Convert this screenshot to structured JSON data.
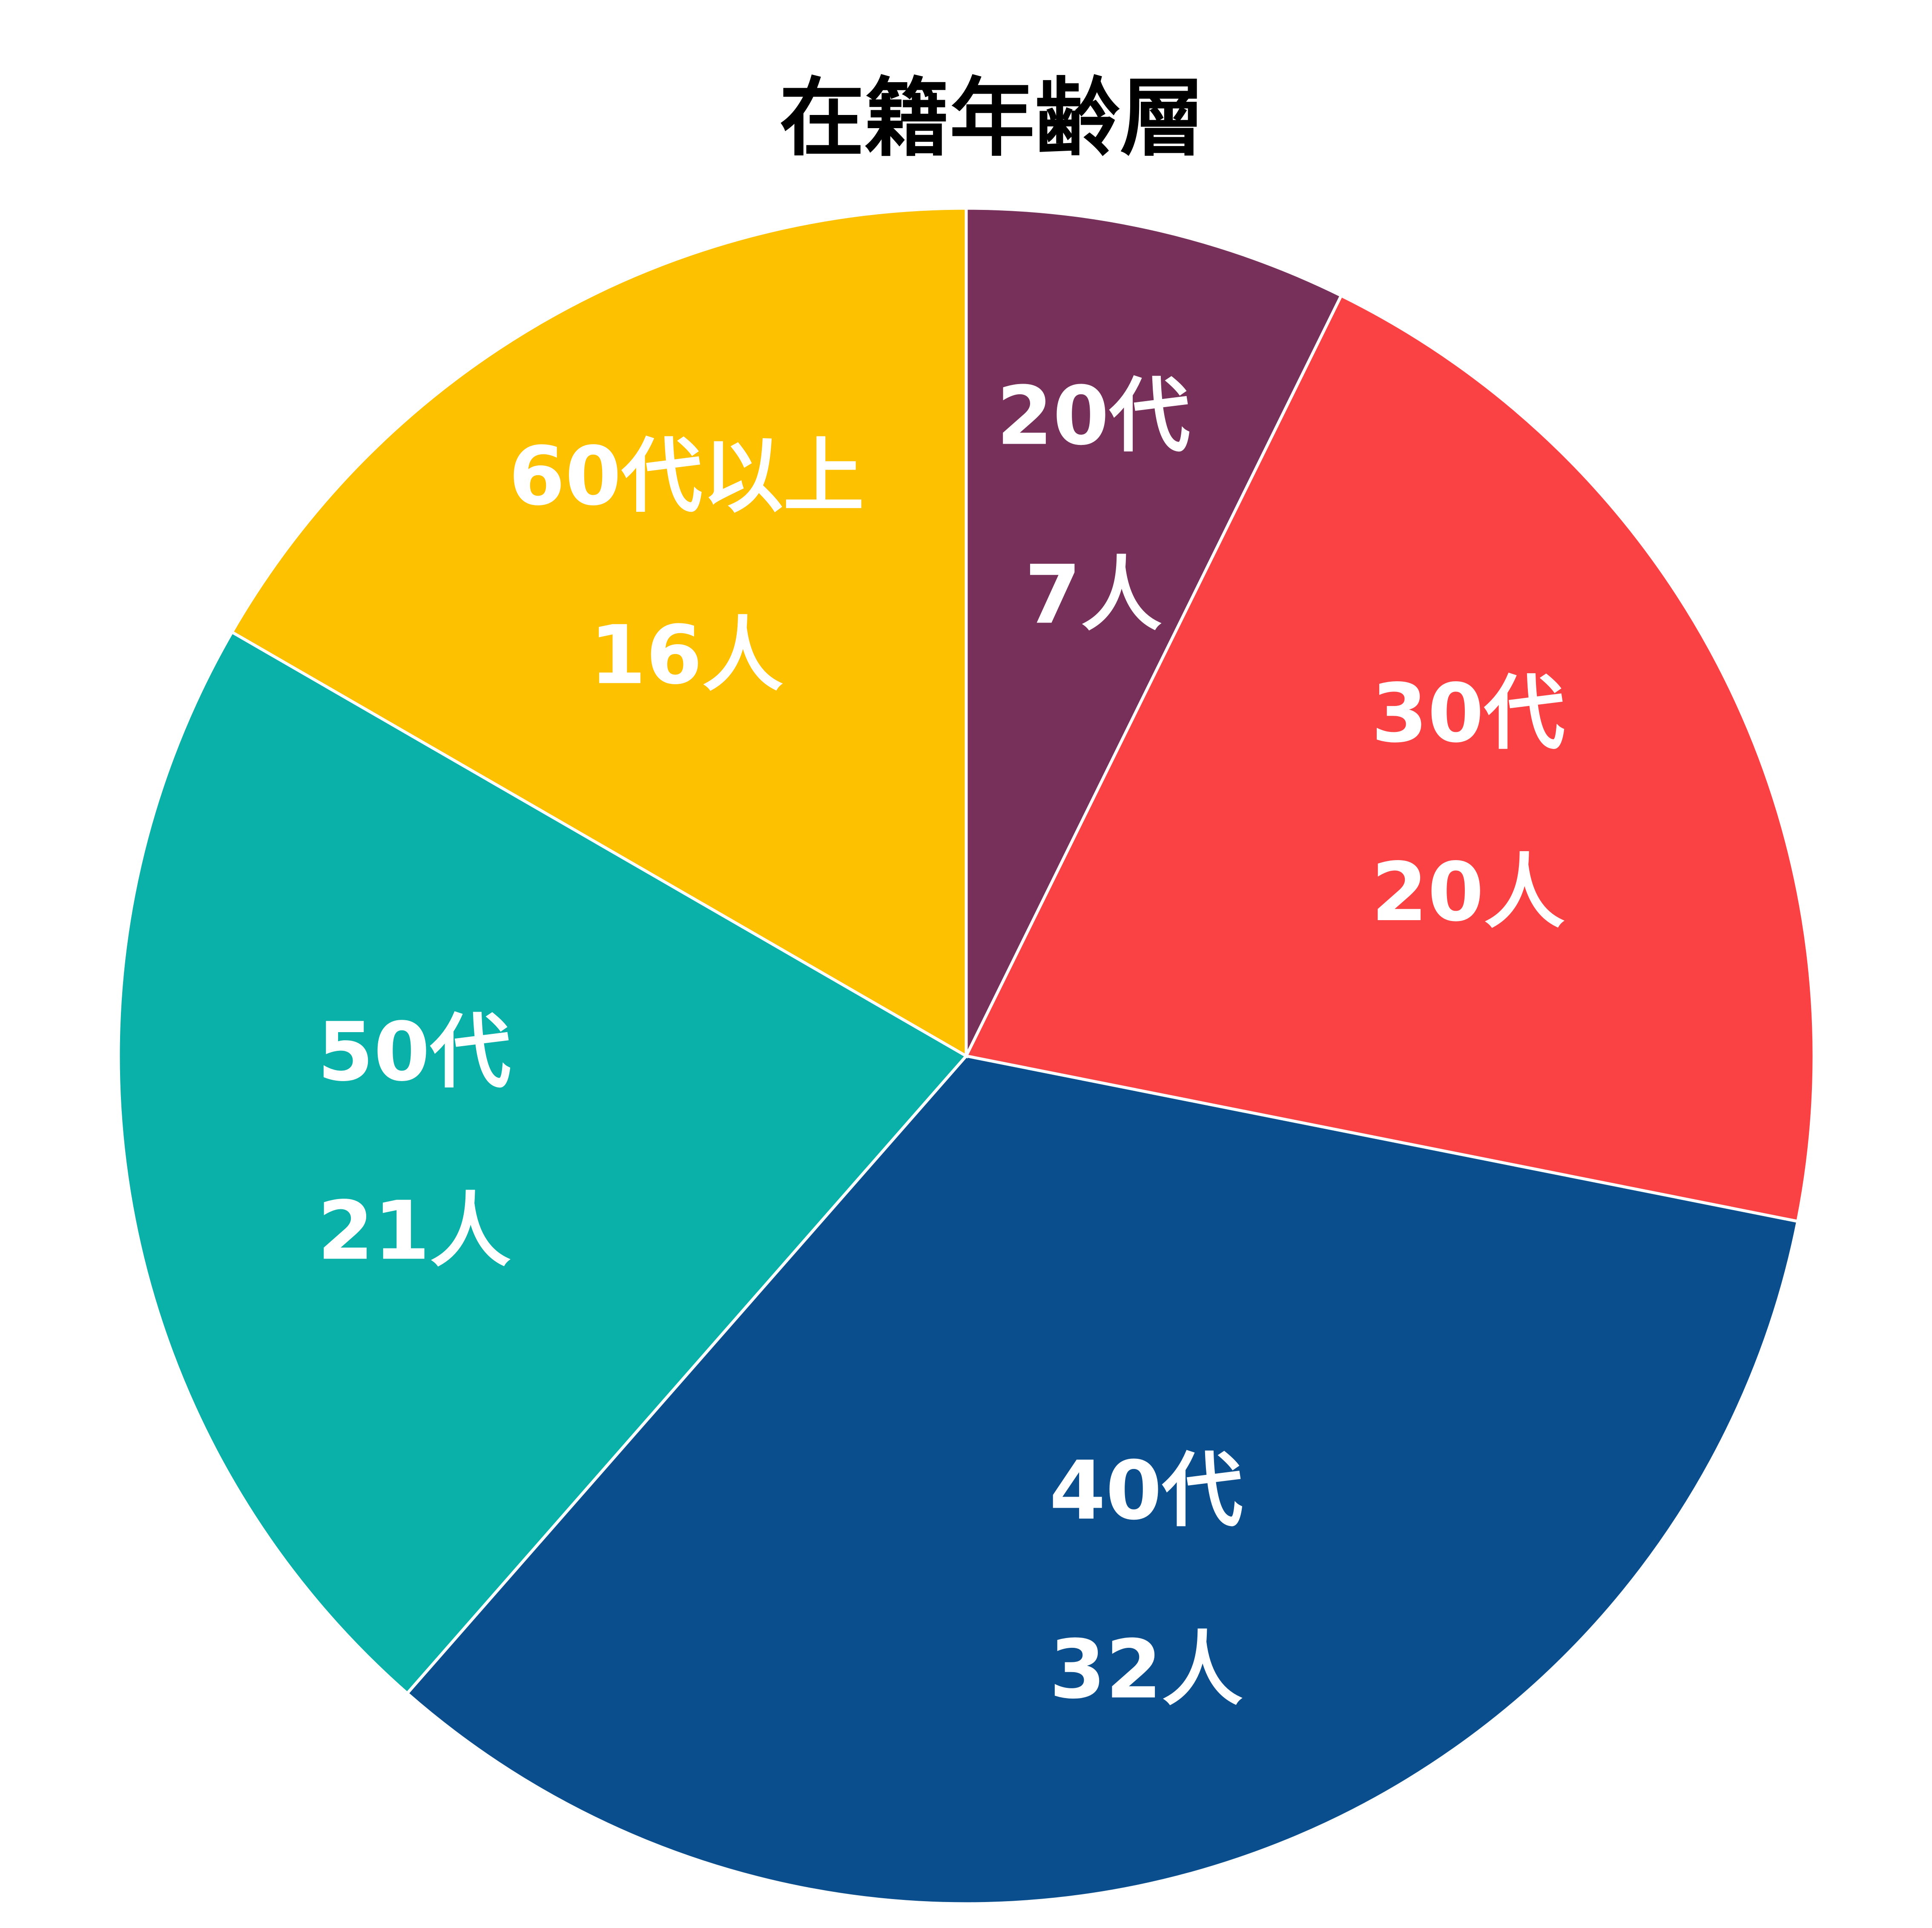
{
  "chart_data": {
    "type": "pie",
    "title": "在籍年齢層",
    "categories": [
      "20代",
      "30代",
      "40代",
      "50代",
      "60代以上"
    ],
    "values": [
      7,
      20,
      32,
      21,
      16
    ],
    "value_labels": [
      "7人",
      "20人",
      "32人",
      "21人",
      "16人"
    ],
    "colors": [
      "#77305a",
      "#fa4143",
      "#0b4e8e",
      "#0ab1a9",
      "#fdc100"
    ]
  }
}
